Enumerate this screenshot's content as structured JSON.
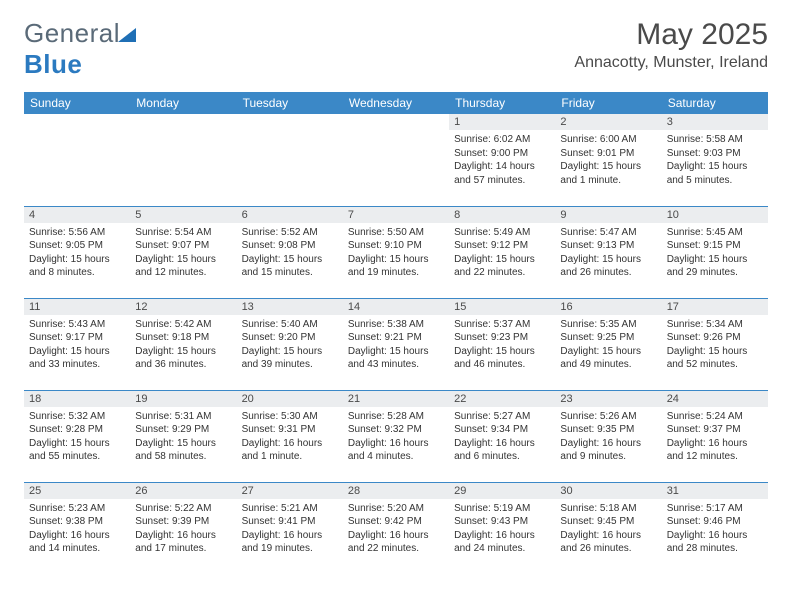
{
  "logo": {
    "word1": "General",
    "word2": "Blue"
  },
  "title": "May 2025",
  "location": "Annacotty, Munster, Ireland",
  "colors": {
    "header_bg": "#3b88c7",
    "header_fg": "#ffffff",
    "daynum_bg": "#ebedef",
    "rule": "#3b88c7",
    "logo_gray": "#5a6a78",
    "logo_blue": "#2b7ac0"
  },
  "weekdays": [
    "Sunday",
    "Monday",
    "Tuesday",
    "Wednesday",
    "Thursday",
    "Friday",
    "Saturday"
  ],
  "first_weekday_index": 4,
  "days": [
    {
      "n": 1,
      "sunrise": "6:02 AM",
      "sunset": "9:00 PM",
      "daylight": "14 hours and 57 minutes."
    },
    {
      "n": 2,
      "sunrise": "6:00 AM",
      "sunset": "9:01 PM",
      "daylight": "15 hours and 1 minute."
    },
    {
      "n": 3,
      "sunrise": "5:58 AM",
      "sunset": "9:03 PM",
      "daylight": "15 hours and 5 minutes."
    },
    {
      "n": 4,
      "sunrise": "5:56 AM",
      "sunset": "9:05 PM",
      "daylight": "15 hours and 8 minutes."
    },
    {
      "n": 5,
      "sunrise": "5:54 AM",
      "sunset": "9:07 PM",
      "daylight": "15 hours and 12 minutes."
    },
    {
      "n": 6,
      "sunrise": "5:52 AM",
      "sunset": "9:08 PM",
      "daylight": "15 hours and 15 minutes."
    },
    {
      "n": 7,
      "sunrise": "5:50 AM",
      "sunset": "9:10 PM",
      "daylight": "15 hours and 19 minutes."
    },
    {
      "n": 8,
      "sunrise": "5:49 AM",
      "sunset": "9:12 PM",
      "daylight": "15 hours and 22 minutes."
    },
    {
      "n": 9,
      "sunrise": "5:47 AM",
      "sunset": "9:13 PM",
      "daylight": "15 hours and 26 minutes."
    },
    {
      "n": 10,
      "sunrise": "5:45 AM",
      "sunset": "9:15 PM",
      "daylight": "15 hours and 29 minutes."
    },
    {
      "n": 11,
      "sunrise": "5:43 AM",
      "sunset": "9:17 PM",
      "daylight": "15 hours and 33 minutes."
    },
    {
      "n": 12,
      "sunrise": "5:42 AM",
      "sunset": "9:18 PM",
      "daylight": "15 hours and 36 minutes."
    },
    {
      "n": 13,
      "sunrise": "5:40 AM",
      "sunset": "9:20 PM",
      "daylight": "15 hours and 39 minutes."
    },
    {
      "n": 14,
      "sunrise": "5:38 AM",
      "sunset": "9:21 PM",
      "daylight": "15 hours and 43 minutes."
    },
    {
      "n": 15,
      "sunrise": "5:37 AM",
      "sunset": "9:23 PM",
      "daylight": "15 hours and 46 minutes."
    },
    {
      "n": 16,
      "sunrise": "5:35 AM",
      "sunset": "9:25 PM",
      "daylight": "15 hours and 49 minutes."
    },
    {
      "n": 17,
      "sunrise": "5:34 AM",
      "sunset": "9:26 PM",
      "daylight": "15 hours and 52 minutes."
    },
    {
      "n": 18,
      "sunrise": "5:32 AM",
      "sunset": "9:28 PM",
      "daylight": "15 hours and 55 minutes."
    },
    {
      "n": 19,
      "sunrise": "5:31 AM",
      "sunset": "9:29 PM",
      "daylight": "15 hours and 58 minutes."
    },
    {
      "n": 20,
      "sunrise": "5:30 AM",
      "sunset": "9:31 PM",
      "daylight": "16 hours and 1 minute."
    },
    {
      "n": 21,
      "sunrise": "5:28 AM",
      "sunset": "9:32 PM",
      "daylight": "16 hours and 4 minutes."
    },
    {
      "n": 22,
      "sunrise": "5:27 AM",
      "sunset": "9:34 PM",
      "daylight": "16 hours and 6 minutes."
    },
    {
      "n": 23,
      "sunrise": "5:26 AM",
      "sunset": "9:35 PM",
      "daylight": "16 hours and 9 minutes."
    },
    {
      "n": 24,
      "sunrise": "5:24 AM",
      "sunset": "9:37 PM",
      "daylight": "16 hours and 12 minutes."
    },
    {
      "n": 25,
      "sunrise": "5:23 AM",
      "sunset": "9:38 PM",
      "daylight": "16 hours and 14 minutes."
    },
    {
      "n": 26,
      "sunrise": "5:22 AM",
      "sunset": "9:39 PM",
      "daylight": "16 hours and 17 minutes."
    },
    {
      "n": 27,
      "sunrise": "5:21 AM",
      "sunset": "9:41 PM",
      "daylight": "16 hours and 19 minutes."
    },
    {
      "n": 28,
      "sunrise": "5:20 AM",
      "sunset": "9:42 PM",
      "daylight": "16 hours and 22 minutes."
    },
    {
      "n": 29,
      "sunrise": "5:19 AM",
      "sunset": "9:43 PM",
      "daylight": "16 hours and 24 minutes."
    },
    {
      "n": 30,
      "sunrise": "5:18 AM",
      "sunset": "9:45 PM",
      "daylight": "16 hours and 26 minutes."
    },
    {
      "n": 31,
      "sunrise": "5:17 AM",
      "sunset": "9:46 PM",
      "daylight": "16 hours and 28 minutes."
    }
  ],
  "labels": {
    "sunrise": "Sunrise:",
    "sunset": "Sunset:",
    "daylight": "Daylight:"
  }
}
